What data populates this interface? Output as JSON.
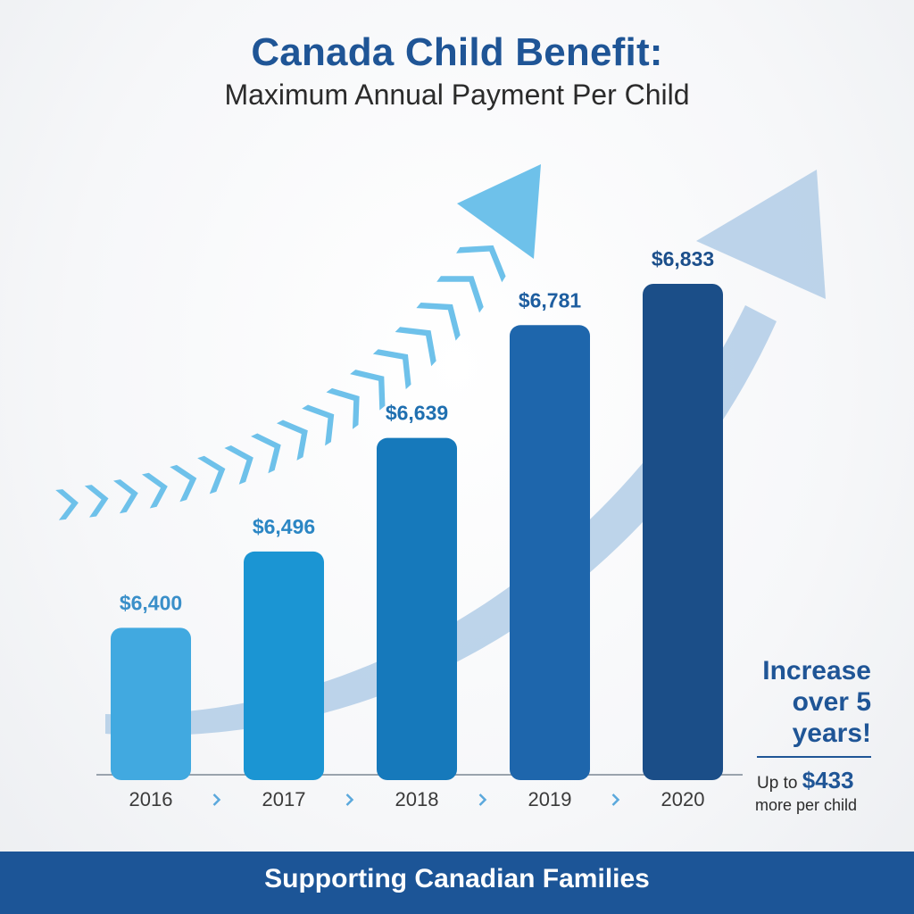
{
  "title": "Canada Child Benefit:",
  "subtitle": "Maximum Annual Payment Per Child",
  "colors": {
    "title": "#1f5596",
    "bars": [
      "#41a9e0",
      "#1b95d3",
      "#1679bb",
      "#1e66ac",
      "#1b4e88"
    ],
    "value_labels": [
      "#3a8fc9",
      "#2b86c4",
      "#1f6fb0",
      "#1e5ea0",
      "#1c4f8b"
    ],
    "chevron_arrow": "#6ec1ea",
    "sweep_arrow": "#b2cde6",
    "footer": "#1c5597"
  },
  "chart_data": {
    "type": "bar",
    "categories": [
      "2016",
      "2017",
      "2018",
      "2019",
      "2020"
    ],
    "values": [
      6400,
      6496,
      6639,
      6781,
      6833
    ],
    "value_labels": [
      "$6,400",
      "$6,496",
      "$6,639",
      "$6,781",
      "$6,833"
    ],
    "separator_icon": "chevron-right",
    "grid": false
  },
  "callout": {
    "headline": "Increase over 5 years!",
    "prefix": "Up to",
    "amount": "$433",
    "suffix": "more per child"
  },
  "footer": {
    "text": "Supporting Canadian Families"
  }
}
